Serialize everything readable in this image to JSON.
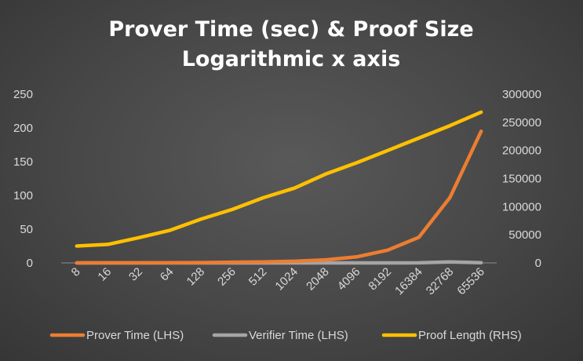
{
  "chart_data": {
    "type": "line",
    "title": "Prover Time (sec) & Proof Size",
    "subtitle": "Logarithmic x axis",
    "x": [
      "8",
      "16",
      "32",
      "64",
      "128",
      "256",
      "512",
      "1024",
      "2048",
      "4096",
      "8192",
      "16384",
      "32768",
      "65536"
    ],
    "x_scale": "log2",
    "y_left": {
      "ylim": [
        0,
        250
      ],
      "ticks": [
        "0",
        "50",
        "100",
        "150",
        "200",
        "250"
      ]
    },
    "y_right": {
      "ylim": [
        0,
        300000
      ],
      "ticks": [
        "0",
        "50000",
        "100000",
        "150000",
        "200000",
        "250000",
        "300000"
      ]
    },
    "series": [
      {
        "name": "Prover Time (LHS)",
        "axis": "left",
        "color": "#ed7d31",
        "values": [
          0.05,
          0.1,
          0.15,
          0.3,
          0.5,
          1,
          1.5,
          2.5,
          4.5,
          9,
          19,
          38,
          97,
          195
        ]
      },
      {
        "name": "Verifier Time (LHS)",
        "axis": "left",
        "color": "#a5a5a5",
        "values": [
          0.01,
          0.01,
          0.01,
          0.01,
          0.02,
          0.02,
          0.02,
          0.03,
          0.03,
          0.04,
          0.05,
          0.08,
          1.5,
          0.3
        ]
      },
      {
        "name": "Proof Length (RHS)",
        "axis": "right",
        "color": "#ffc000",
        "values": [
          30000,
          33000,
          45000,
          58000,
          78000,
          95000,
          116000,
          133000,
          158000,
          178000,
          200000,
          222000,
          244000,
          268000
        ]
      }
    ],
    "grid": false,
    "legend_position": "bottom"
  }
}
